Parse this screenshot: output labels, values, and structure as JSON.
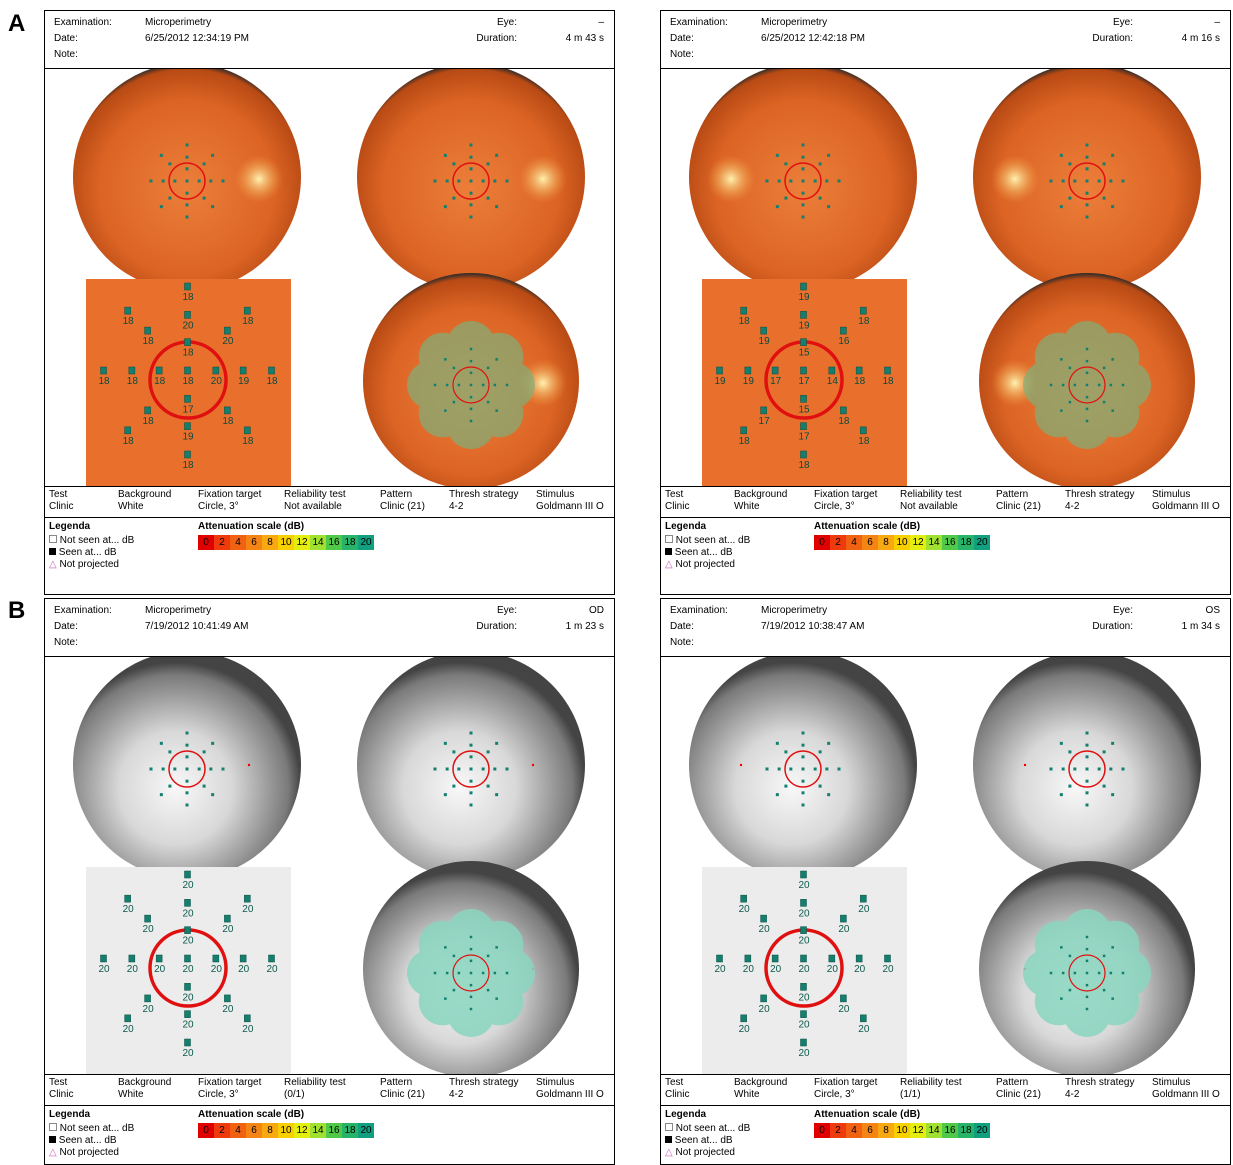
{
  "panel_labels": [
    "A",
    "B"
  ],
  "header_labels": {
    "examination": "Examination:",
    "date": "Date:",
    "note": "Note:",
    "eye": "Eye:",
    "duration": "Duration:"
  },
  "info_headers": [
    "Test",
    "Background",
    "Fixation target",
    "Reliability test",
    "Pattern",
    "Thresh strategy",
    "Stimulus"
  ],
  "legend": {
    "title": "Legenda",
    "items": [
      "Not seen at... dB",
      "Seen at... dB",
      "Not projected"
    ]
  },
  "scale": {
    "title": "Attenuation scale (dB)",
    "values": [
      0,
      2,
      4,
      6,
      8,
      10,
      12,
      14,
      16,
      18,
      20
    ],
    "colors": [
      "#e00000",
      "#ee3a0c",
      "#f06212",
      "#f48414",
      "#f8a810",
      "#f8d000",
      "#e4ee10",
      "#a0e030",
      "#50c848",
      "#28b468",
      "#10a080"
    ]
  },
  "reports": [
    {
      "style": "color",
      "eye_side": "right",
      "examination": "Microperimetry",
      "date": "6/25/2012 12:34:19 PM",
      "eye": "–",
      "duration": "4 m 43 s",
      "info": [
        "Clinic",
        "White",
        "Circle, 3°",
        "Not available",
        "Clinic (21)",
        "4-2",
        "Goldmann III O"
      ],
      "points": [
        18,
        18,
        18,
        18,
        18,
        18,
        18,
        18,
        20,
        18,
        20,
        18,
        19,
        18,
        18,
        19,
        18,
        18,
        20,
        17,
        18
      ]
    },
    {
      "style": "color",
      "eye_side": "left",
      "examination": "Microperimetry",
      "date": "6/25/2012 12:42:18 PM",
      "eye": "–",
      "duration": "4 m 16 s",
      "info": [
        "Clinic",
        "White",
        "Circle, 3°",
        "Not available",
        "Clinic (21)",
        "4-2",
        "Goldmann III O"
      ],
      "points": [
        19,
        18,
        18,
        19,
        18,
        18,
        18,
        18,
        19,
        19,
        16,
        19,
        18,
        17,
        18,
        17,
        15,
        17,
        14,
        15,
        17
      ]
    },
    {
      "style": "gray",
      "eye_side": "right",
      "examination": "Microperimetry",
      "date": "7/19/2012 10:41:49 AM",
      "eye": "OD",
      "duration": "1 m 23 s",
      "info": [
        "Clinic",
        "White",
        "Circle, 3°",
        "(0/1)",
        "Clinic (21)",
        "4-2",
        "Goldmann III O"
      ],
      "points": [
        20,
        20,
        20,
        20,
        20,
        20,
        20,
        20,
        20,
        20,
        20,
        20,
        20,
        20,
        20,
        20,
        20,
        20,
        20,
        20,
        20
      ]
    },
    {
      "style": "gray",
      "eye_side": "left",
      "examination": "Microperimetry",
      "date": "7/19/2012 10:38:47 AM",
      "eye": "OS",
      "duration": "1 m 34 s",
      "info": [
        "Clinic",
        "White",
        "Circle, 3°",
        "(1/1)",
        "Clinic (21)",
        "4-2",
        "Goldmann III O"
      ],
      "points": [
        20,
        20,
        20,
        20,
        20,
        20,
        20,
        20,
        20,
        20,
        20,
        20,
        20,
        20,
        20,
        20,
        20,
        20,
        20,
        20,
        20
      ]
    }
  ]
}
